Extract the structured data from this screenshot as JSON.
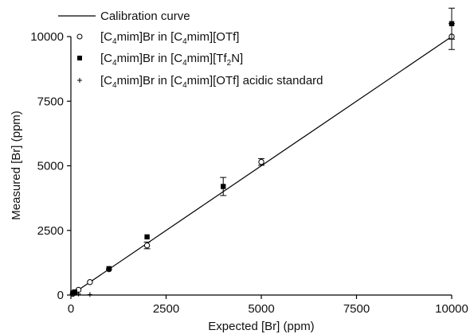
{
  "chart_data": {
    "type": "scatter",
    "xlabel": "Expected [Br] (ppm)",
    "ylabel": "Measured [Br] (ppm)",
    "xlim": [
      0,
      10000
    ],
    "ylim": [
      0,
      10000
    ],
    "xticks": [
      "0",
      "2500",
      "5000",
      "7500",
      "10000"
    ],
    "yticks": [
      "0",
      "2500",
      "5000",
      "7500",
      "10000"
    ],
    "grid": false,
    "legend_placement": "top-left",
    "calibration_curve": {
      "name": "Calibration curve",
      "x": [
        0,
        10000
      ],
      "y": [
        0,
        10000
      ]
    },
    "series": [
      {
        "name_main": "[C",
        "name_sub1": "4",
        "name_mid": "mim]Br in [C",
        "name_sub2": "4",
        "name_end": "mim][OTf]",
        "marker": "open-circle",
        "points": [
          {
            "x": 50,
            "y": 50,
            "err": 0
          },
          {
            "x": 100,
            "y": 100,
            "err": 0
          },
          {
            "x": 200,
            "y": 200,
            "err": 0
          },
          {
            "x": 500,
            "y": 500,
            "err": 0
          },
          {
            "x": 1000,
            "y": 1000,
            "err": 0
          },
          {
            "x": 2000,
            "y": 1920,
            "err": 130
          },
          {
            "x": 5000,
            "y": 5150,
            "err": 130
          },
          {
            "x": 10000,
            "y": 10000,
            "err": 500
          }
        ]
      },
      {
        "name_main": "[C",
        "name_sub1": "4",
        "name_mid": "mim]Br in [C",
        "name_sub2": "4",
        "name_end": "mim][Tf",
        "name_sub3": "2",
        "name_end2": "N]",
        "marker": "filled-square",
        "points": [
          {
            "x": 50,
            "y": 80,
            "err": 0
          },
          {
            "x": 100,
            "y": 120,
            "err": 0
          },
          {
            "x": 1000,
            "y": 1020,
            "err": 0
          },
          {
            "x": 2000,
            "y": 2250,
            "err": 0
          },
          {
            "x": 4000,
            "y": 4200,
            "err": 350
          },
          {
            "x": 10000,
            "y": 10500,
            "err": 600
          }
        ]
      },
      {
        "name_main": "[C",
        "name_sub1": "4",
        "name_mid": "mim]Br in [C",
        "name_sub2": "4",
        "name_end": "mim][OTf] acidic standard",
        "marker": "plus",
        "points": [
          {
            "x": 50,
            "y": 30,
            "err": 0
          },
          {
            "x": 100,
            "y": 60,
            "err": 0
          },
          {
            "x": 200,
            "y": 40,
            "err": 0
          },
          {
            "x": 500,
            "y": 20,
            "err": 0
          }
        ]
      }
    ]
  }
}
